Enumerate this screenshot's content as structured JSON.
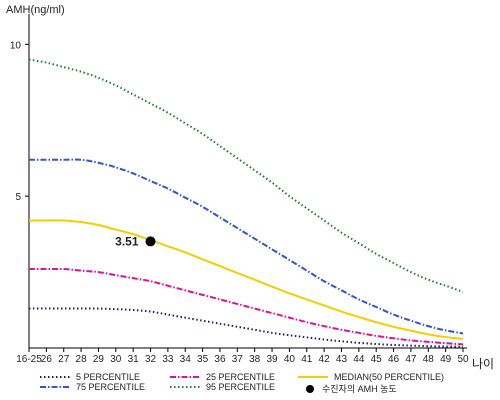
{
  "chart_data": {
    "type": "line",
    "ylabel": "AMH(ng/ml)",
    "xlabel": "나이",
    "x": [
      "16-25",
      "26",
      "27",
      "28",
      "29",
      "30",
      "31",
      "32",
      "33",
      "34",
      "35",
      "36",
      "37",
      "38",
      "39",
      "40",
      "41",
      "42",
      "43",
      "44",
      "45",
      "46",
      "47",
      "48",
      "49",
      "50"
    ],
    "ylim": [
      0,
      11
    ],
    "yticks": [
      5,
      10
    ],
    "series": [
      {
        "name": "5 PERCENTILE",
        "color": "#1a1a8a",
        "style": "dotted",
        "values": [
          1.3,
          1.3,
          1.3,
          1.3,
          1.3,
          1.28,
          1.25,
          1.2,
          1.1,
          1.0,
          0.9,
          0.8,
          0.7,
          0.6,
          0.5,
          0.42,
          0.35,
          0.28,
          0.22,
          0.17,
          0.13,
          0.1,
          0.08,
          0.06,
          0.05,
          0.05
        ]
      },
      {
        "name": "25 PERCENTILE",
        "color": "#e0109a",
        "style": "dashdot",
        "values": [
          2.6,
          2.6,
          2.6,
          2.55,
          2.5,
          2.4,
          2.3,
          2.2,
          2.05,
          1.9,
          1.75,
          1.6,
          1.45,
          1.3,
          1.15,
          1.0,
          0.85,
          0.72,
          0.6,
          0.5,
          0.4,
          0.32,
          0.25,
          0.2,
          0.16,
          0.12
        ]
      },
      {
        "name": "MEDIAN(50 PERCENTILE)",
        "color": "#f2cf00",
        "style": "solid",
        "values": [
          4.2,
          4.2,
          4.2,
          4.15,
          4.05,
          3.9,
          3.75,
          3.55,
          3.35,
          3.15,
          2.92,
          2.7,
          2.47,
          2.25,
          2.02,
          1.8,
          1.6,
          1.4,
          1.2,
          1.02,
          0.85,
          0.7,
          0.57,
          0.45,
          0.36,
          0.3
        ]
      },
      {
        "name": "75 PERCENTILE",
        "color": "#3355cc",
        "style": "dashdot",
        "values": [
          6.2,
          6.2,
          6.2,
          6.2,
          6.1,
          5.95,
          5.75,
          5.5,
          5.25,
          4.95,
          4.65,
          4.3,
          3.95,
          3.6,
          3.25,
          2.9,
          2.55,
          2.2,
          1.9,
          1.6,
          1.35,
          1.1,
          0.9,
          0.72,
          0.58,
          0.48
        ]
      },
      {
        "name": "95 PERCENTILE",
        "color": "#1e7a3c",
        "style": "dotted",
        "values": [
          9.5,
          9.4,
          9.25,
          9.1,
          8.9,
          8.65,
          8.35,
          8.05,
          7.75,
          7.4,
          7.05,
          6.65,
          6.25,
          5.85,
          5.45,
          5.0,
          4.6,
          4.2,
          3.8,
          3.45,
          3.1,
          2.8,
          2.5,
          2.25,
          2.05,
          1.85
        ]
      }
    ],
    "marker": {
      "name": "수진자의 AMH 농도",
      "x": "32",
      "y": 3.51,
      "label": "3.51"
    }
  }
}
